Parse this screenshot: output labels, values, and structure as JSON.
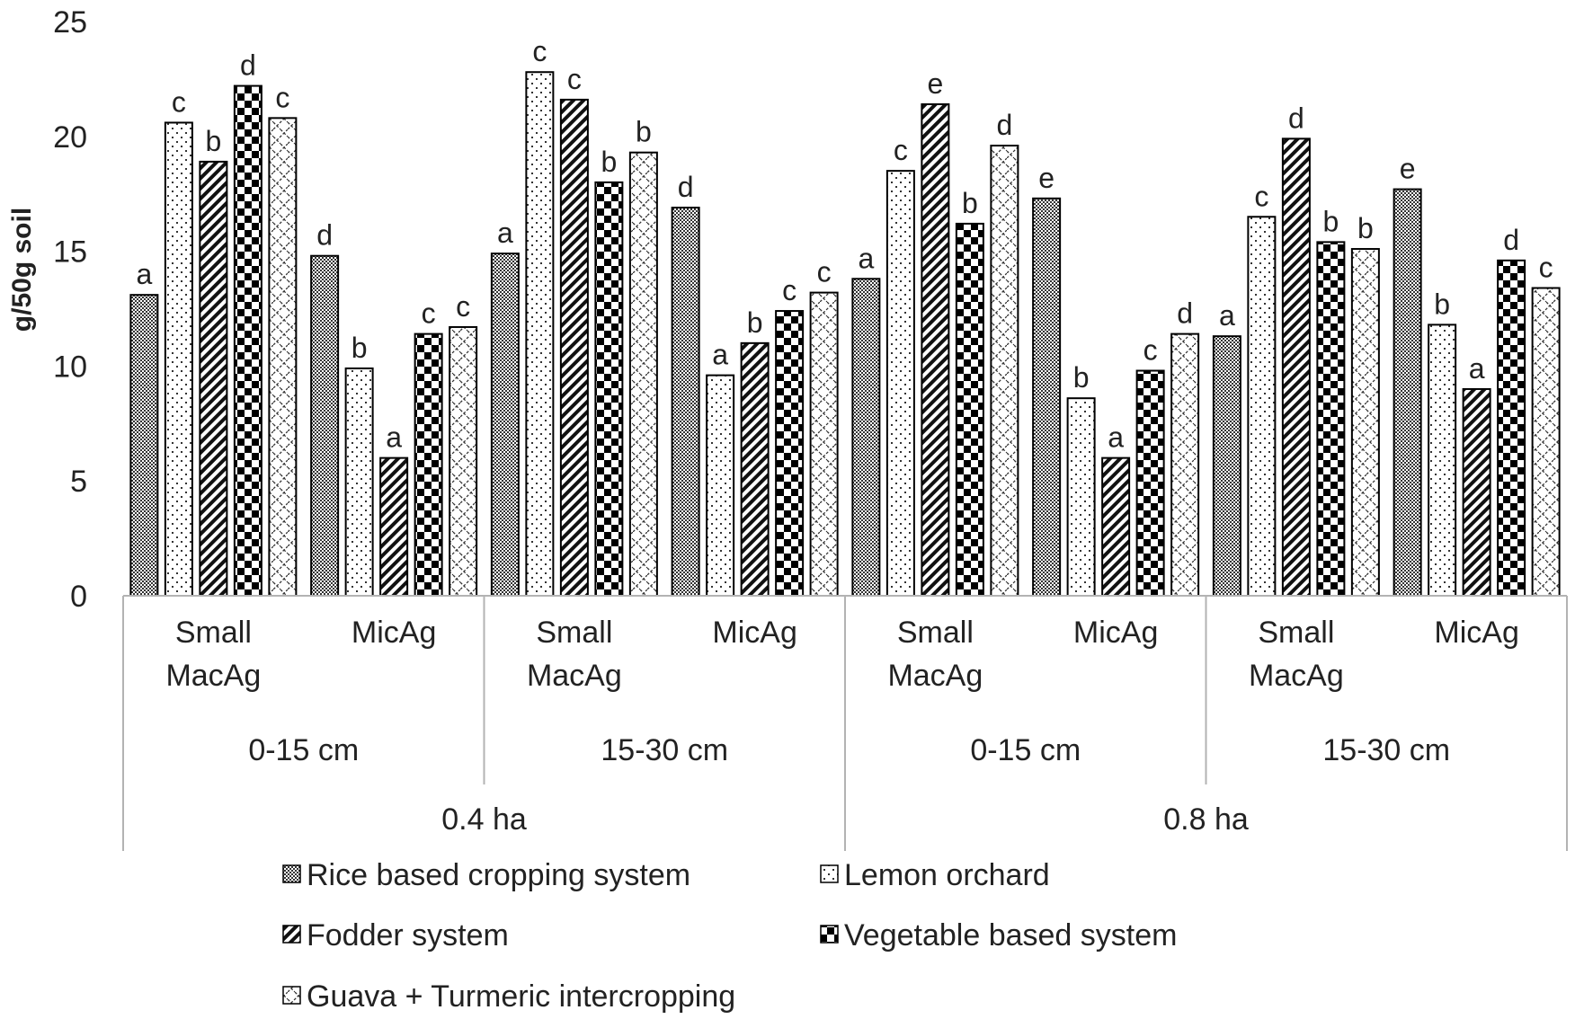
{
  "chart_data": {
    "type": "bar",
    "title": "",
    "xlabel": "",
    "ylabel": "g/50g soil",
    "ylim": [
      0,
      25
    ],
    "yticks": [
      "0",
      "5",
      "10",
      "15",
      "20",
      "25"
    ],
    "grid": false,
    "legend_position": "bottom",
    "farm_sizes": [
      "0.4 ha",
      "0.8 ha"
    ],
    "depths": [
      "0-15 cm",
      "15-30 cm",
      "0-15 cm",
      "15-30 cm"
    ],
    "categories": [
      [
        "Small",
        "MacAg"
      ],
      [
        "MicAg"
      ],
      [
        "Small",
        "MacAg"
      ],
      [
        "MicAg"
      ],
      [
        "Small",
        "MacAg"
      ],
      [
        "MicAg"
      ],
      [
        "Small",
        "MacAg"
      ],
      [
        "MicAg"
      ]
    ],
    "series": [
      {
        "name": "Rice based cropping system",
        "pattern": "rice",
        "values": [
          13.1,
          14.8,
          14.9,
          16.9,
          13.8,
          17.3,
          11.3,
          17.7
        ],
        "letters": [
          "a",
          "d",
          "a",
          "d",
          "a",
          "e",
          "a",
          "e"
        ]
      },
      {
        "name": "Lemon orchard",
        "pattern": "lemon",
        "values": [
          20.6,
          9.9,
          22.8,
          9.6,
          18.5,
          8.6,
          16.5,
          11.8
        ],
        "letters": [
          "c",
          "b",
          "c",
          "a",
          "c",
          "b",
          "c",
          "b"
        ]
      },
      {
        "name": "Fodder system",
        "pattern": "fodder",
        "values": [
          18.9,
          6.0,
          21.6,
          11.0,
          21.4,
          6.0,
          19.9,
          9.0
        ],
        "letters": [
          "b",
          "a",
          "c",
          "b",
          "e",
          "a",
          "d",
          "a"
        ]
      },
      {
        "name": "Vegetable based system",
        "pattern": "veg",
        "values": [
          22.2,
          11.4,
          18.0,
          12.4,
          16.2,
          9.8,
          15.4,
          14.6
        ],
        "letters": [
          "d",
          "c",
          "b",
          "c",
          "b",
          "c",
          "b",
          "d"
        ]
      },
      {
        "name": "Guava + Turmeric intercropping",
        "pattern": "guava",
        "values": [
          20.8,
          11.7,
          19.3,
          13.2,
          19.6,
          11.4,
          15.1,
          13.4
        ],
        "letters": [
          "c",
          "c",
          "b",
          "c",
          "d",
          "d",
          "b",
          "c"
        ]
      }
    ]
  }
}
